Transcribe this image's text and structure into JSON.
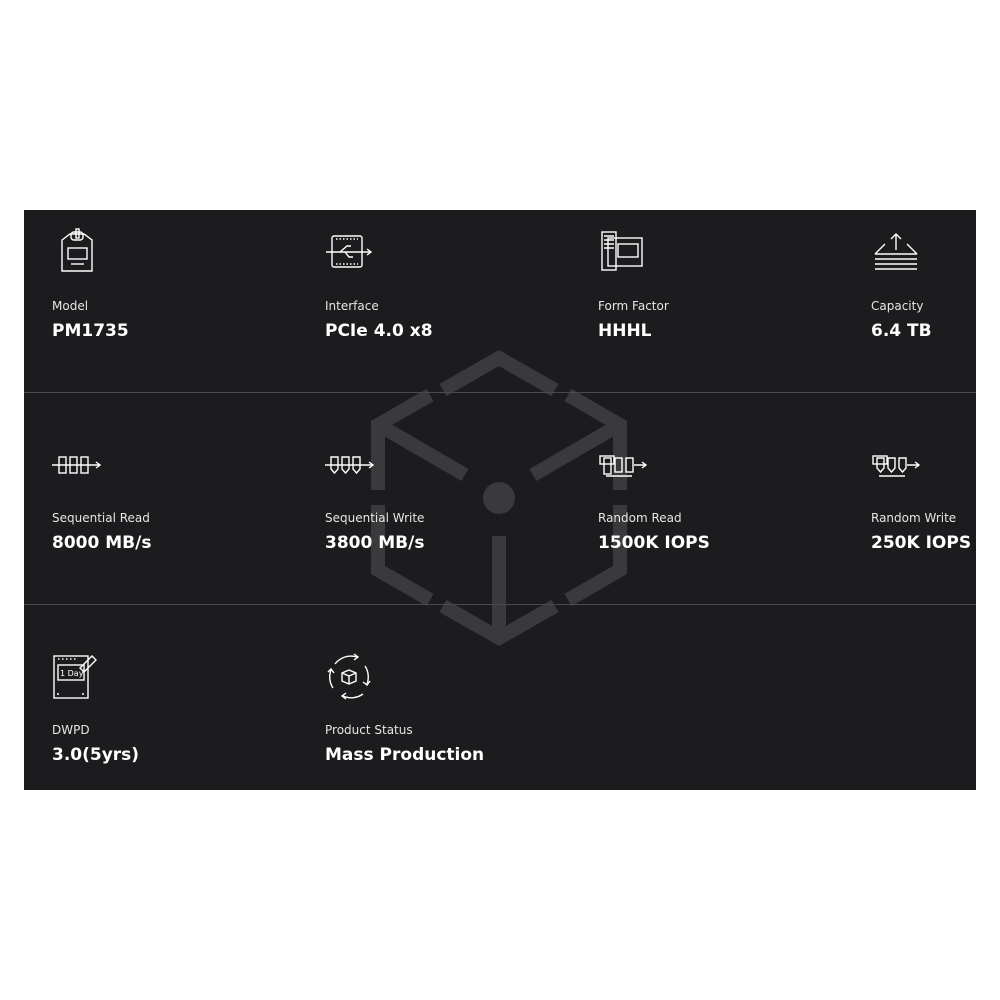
{
  "specs": [
    {
      "icon": "ssd-model-icon",
      "label": "Model",
      "value": "PM1735"
    },
    {
      "icon": "interface-chip-icon",
      "label": "Interface",
      "value": "PCIe 4.0 x8"
    },
    {
      "icon": "form-factor-card-icon",
      "label": "Form Factor",
      "value": "HHHL"
    },
    {
      "icon": "capacity-upload-icon",
      "label": "Capacity",
      "value": "6.4 TB"
    },
    {
      "icon": "sequential-read-icon",
      "label": "Sequential Read",
      "value": "8000 MB/s"
    },
    {
      "icon": "sequential-write-icon",
      "label": "Sequential Write",
      "value": "3800 MB/s"
    },
    {
      "icon": "random-read-icon",
      "label": "Random Read",
      "value": "1500K IOPS"
    },
    {
      "icon": "random-write-icon",
      "label": "Random Write",
      "value": "250K IOPS"
    },
    {
      "icon": "dwpd-calendar-icon",
      "label": "DWPD",
      "value": "3.0(5yrs)",
      "icon_text": "1 Day"
    },
    {
      "icon": "product-status-cycle-icon",
      "label": "Product Status",
      "value": "Mass Production"
    }
  ],
  "colors": {
    "panel_bg": "#1c1c1e",
    "watermark": "#3a3a3c",
    "text": "#ffffff"
  }
}
